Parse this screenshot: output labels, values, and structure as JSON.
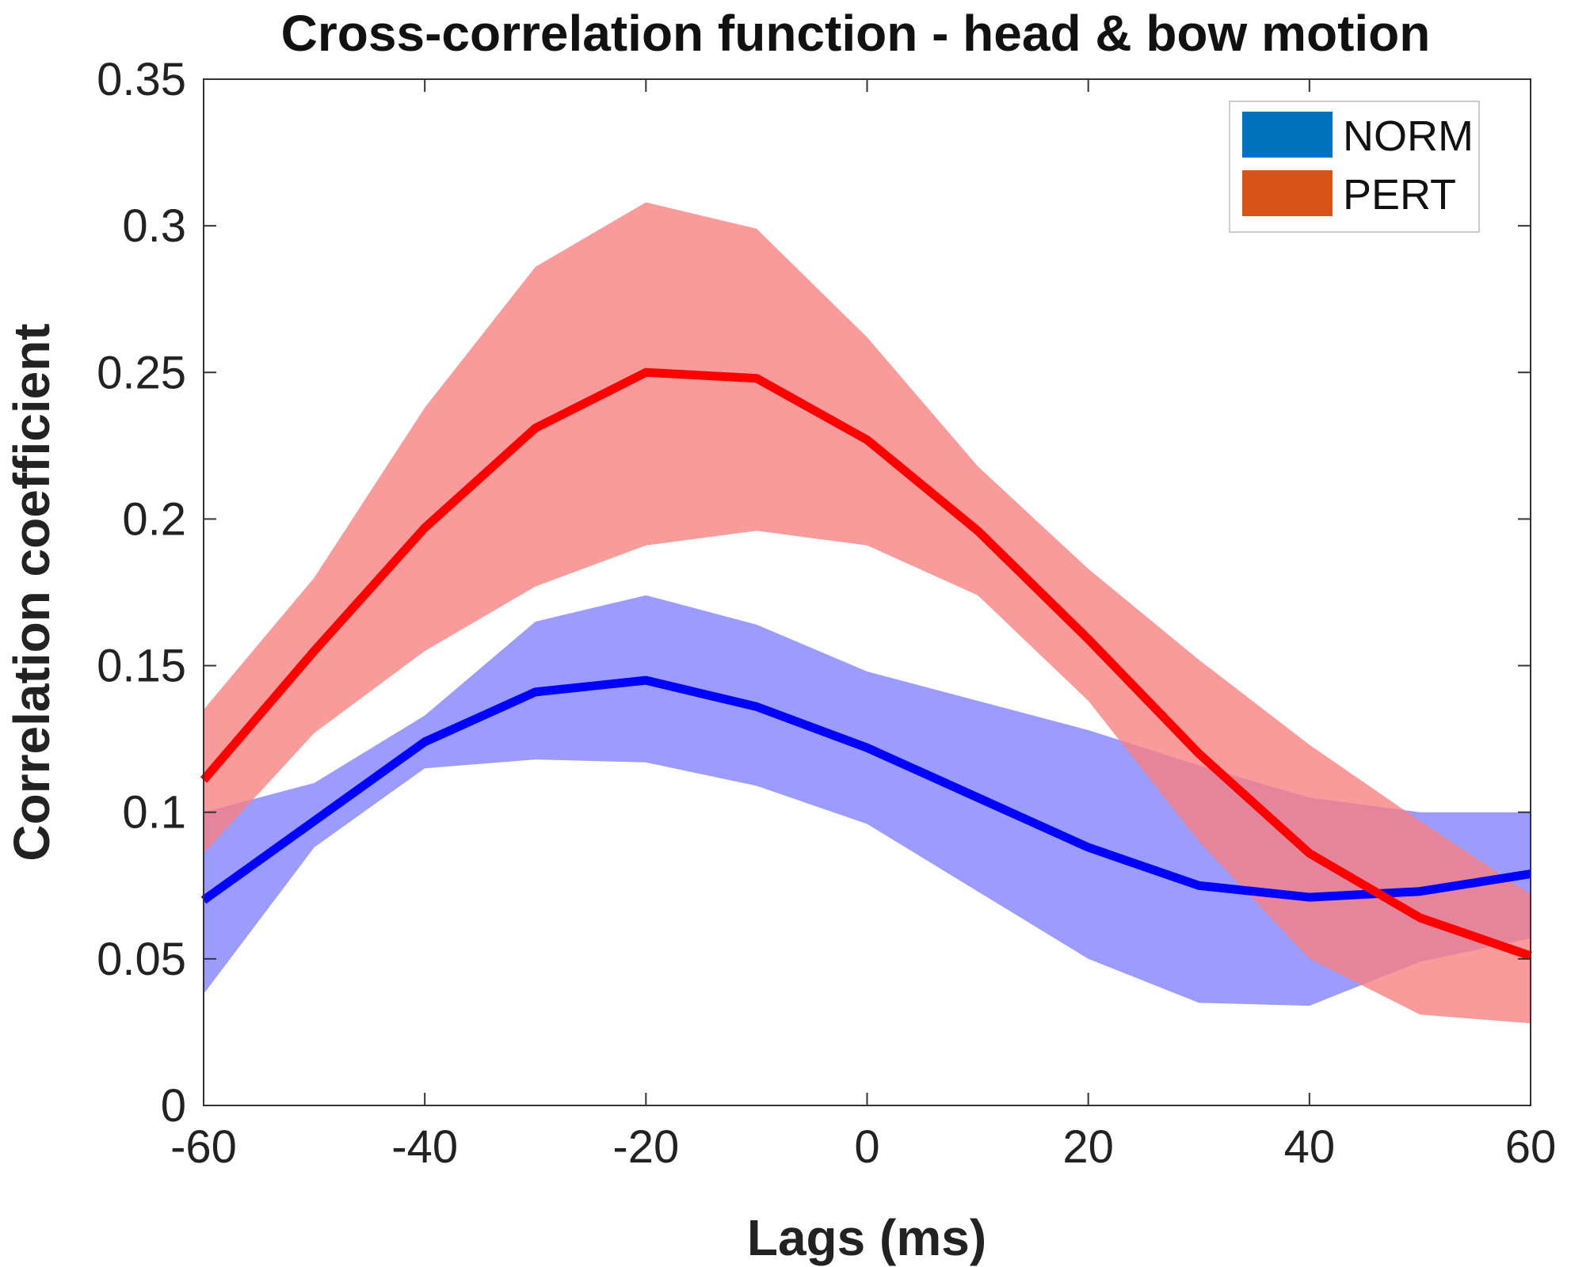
{
  "chart_data": {
    "type": "line",
    "title": "Cross-correlation function - head & bow motion",
    "xlabel": "Lags (ms)",
    "ylabel": "Correlation coefficient",
    "xlim": [
      -60,
      60
    ],
    "ylim": [
      0,
      0.35
    ],
    "xticks": [
      -60,
      -40,
      -20,
      0,
      20,
      40,
      60
    ],
    "xtick_labels": [
      "-60",
      "-40",
      "-20",
      "0",
      "20",
      "40",
      "60"
    ],
    "yticks": [
      0,
      0.05,
      0.1,
      0.15,
      0.2,
      0.25,
      0.3,
      0.35
    ],
    "ytick_labels": [
      "0",
      "0.05",
      "0.1",
      "0.15",
      "0.2",
      "0.25",
      "0.3",
      "0.35"
    ],
    "grid": false,
    "legend_position": "top-right",
    "x": [
      -60,
      -50,
      -40,
      -30,
      -20,
      -10,
      0,
      10,
      20,
      30,
      40,
      50,
      60
    ],
    "series": [
      {
        "name": "NORM",
        "line_color": "#0000ff",
        "band_color": "#8080ff",
        "legend_color": "#0072bd",
        "values": [
          0.07,
          0.097,
          0.124,
          0.141,
          0.145,
          0.136,
          0.122,
          0.105,
          0.088,
          0.075,
          0.071,
          0.073,
          0.079
        ],
        "upper": [
          0.1,
          0.11,
          0.133,
          0.165,
          0.174,
          0.164,
          0.148,
          0.138,
          0.128,
          0.116,
          0.105,
          0.1,
          0.1
        ],
        "lower": [
          0.038,
          0.088,
          0.115,
          0.118,
          0.117,
          0.109,
          0.096,
          0.073,
          0.05,
          0.035,
          0.034,
          0.049,
          0.057
        ]
      },
      {
        "name": "PERT",
        "line_color": "#ff0000",
        "band_color": "#f87f7f",
        "legend_color": "#d95319",
        "values": [
          0.111,
          0.155,
          0.197,
          0.231,
          0.25,
          0.248,
          0.227,
          0.196,
          0.159,
          0.12,
          0.086,
          0.064,
          0.051
        ],
        "upper": [
          0.135,
          0.18,
          0.238,
          0.286,
          0.308,
          0.299,
          0.262,
          0.218,
          0.183,
          0.152,
          0.123,
          0.097,
          0.072
        ],
        "lower": [
          0.086,
          0.127,
          0.155,
          0.177,
          0.191,
          0.196,
          0.191,
          0.174,
          0.138,
          0.09,
          0.05,
          0.031,
          0.028
        ]
      }
    ]
  }
}
